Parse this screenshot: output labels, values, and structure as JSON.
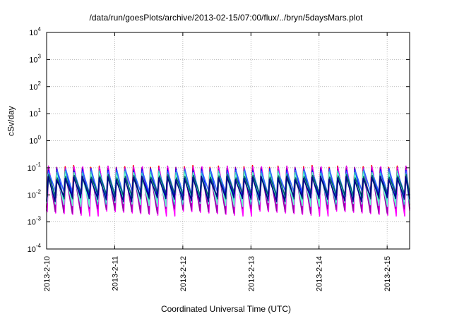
{
  "chart_data": {
    "type": "line",
    "title": "/data/run/goesPlots/archive/2013-02-15/07:00/flux/../bryn/5daysMars.plot",
    "xlabel": "Coordinated Universal Time (UTC)",
    "ylabel": "cSv/day",
    "yscale": "log",
    "ylim_exponents": [
      -4,
      4
    ],
    "y_tick_labels": [
      {
        "base": "10",
        "exp": "4"
      },
      {
        "base": "10",
        "exp": "3"
      },
      {
        "base": "10",
        "exp": "2"
      },
      {
        "base": "10",
        "exp": "1"
      },
      {
        "base": "10",
        "exp": "0"
      },
      {
        "base": "10",
        "exp": "-1"
      },
      {
        "base": "10",
        "exp": "-2"
      },
      {
        "base": "10",
        "exp": "-3"
      },
      {
        "base": "10",
        "exp": "-4"
      }
    ],
    "x_tick_labels": [
      "2013-2-10",
      "2013-2-11",
      "2013-2-12",
      "2013-2-13",
      "2013-2-14",
      "2013-2-15"
    ],
    "xlim_days": [
      0,
      5.33
    ],
    "grid": true,
    "sawtooth_period_days": 0.125,
    "series": [
      {
        "color": "#ff0000",
        "peak": 0.11,
        "trough": 0.0045
      },
      {
        "color": "#cc00cc",
        "peak": 0.105,
        "trough": 0.0038
      },
      {
        "color": "#ff00ff",
        "peak": 0.1,
        "trough": 0.0022
      },
      {
        "color": "#9900aa",
        "peak": 0.095,
        "trough": 0.0028
      },
      {
        "color": "#0000ff",
        "peak": 0.085,
        "trough": 0.008
      },
      {
        "color": "#3366ff",
        "peak": 0.08,
        "trough": 0.011
      },
      {
        "color": "#33cccc",
        "peak": 0.07,
        "trough": 0.006
      },
      {
        "color": "#66ffcc",
        "peak": 0.06,
        "trough": 0.005
      },
      {
        "color": "#006666",
        "peak": 0.05,
        "trough": 0.0095
      },
      {
        "color": "#000088",
        "peak": 0.045,
        "trough": 0.0075
      }
    ]
  }
}
